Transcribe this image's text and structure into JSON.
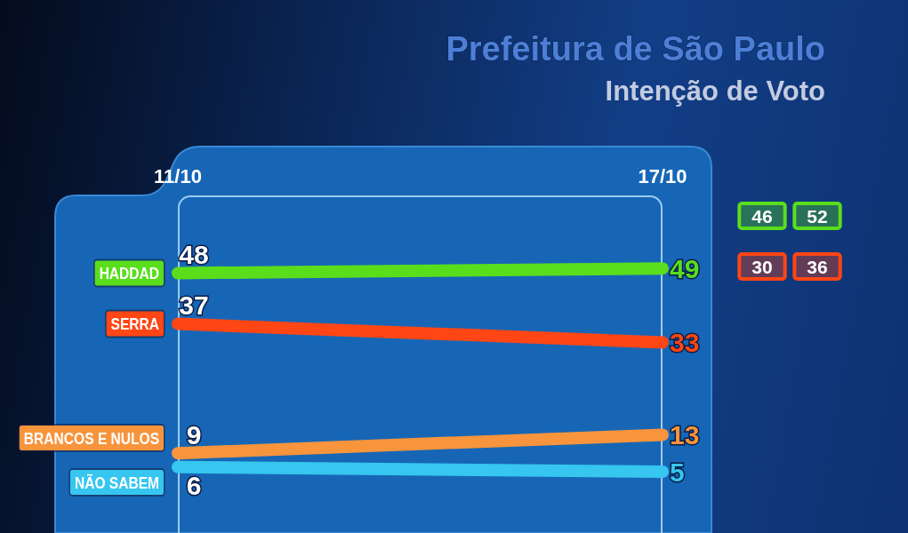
{
  "chart_data": {
    "type": "line",
    "title": "Prefeitura de São Paulo",
    "subtitle": "Intenção de Voto",
    "categories": [
      "11/10",
      "17/10"
    ],
    "series": [
      {
        "name": "HADDAD",
        "color": "#5ade1c",
        "values": [
          48,
          49
        ]
      },
      {
        "name": "SERRA",
        "color": "#ff4614",
        "values": [
          37,
          33
        ]
      },
      {
        "name": "BRANCOS E NULOS",
        "color": "#f7943c",
        "values": [
          9,
          13
        ]
      },
      {
        "name": "NÃO SABEM",
        "color": "#36c6ef",
        "values": [
          6,
          5
        ]
      }
    ],
    "annotations": [
      "46",
      "52",
      "30",
      "36"
    ],
    "data_labels": true
  }
}
